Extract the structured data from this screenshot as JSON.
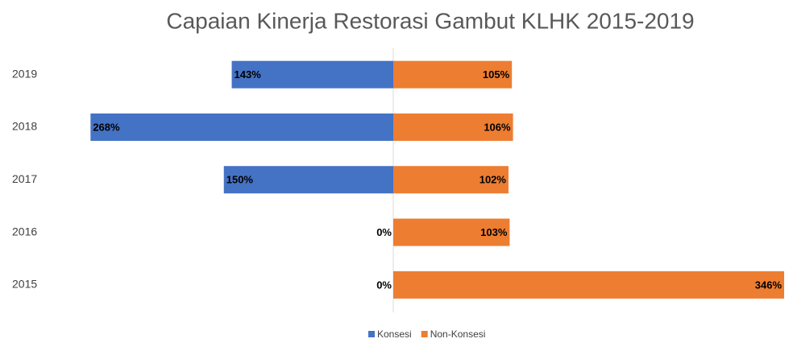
{
  "chart_data": {
    "type": "bar",
    "title": "Capaian Kinerja Restorasi Gambut KLHK 2015-2019",
    "categories": [
      "2019",
      "2018",
      "2017",
      "2016",
      "2015"
    ],
    "series": [
      {
        "name": "Konsesi",
        "color": "#4472c4",
        "values": [
          143,
          268,
          150,
          0,
          0
        ],
        "value_labels": [
          "143%",
          "268%",
          "150%",
          "0%",
          "0%"
        ]
      },
      {
        "name": "Non-Konsesi",
        "color": "#ed7d31",
        "values": [
          105,
          106,
          102,
          103,
          346
        ],
        "value_labels": [
          "105%",
          "106%",
          "102%",
          "103%",
          "346%"
        ]
      }
    ]
  }
}
